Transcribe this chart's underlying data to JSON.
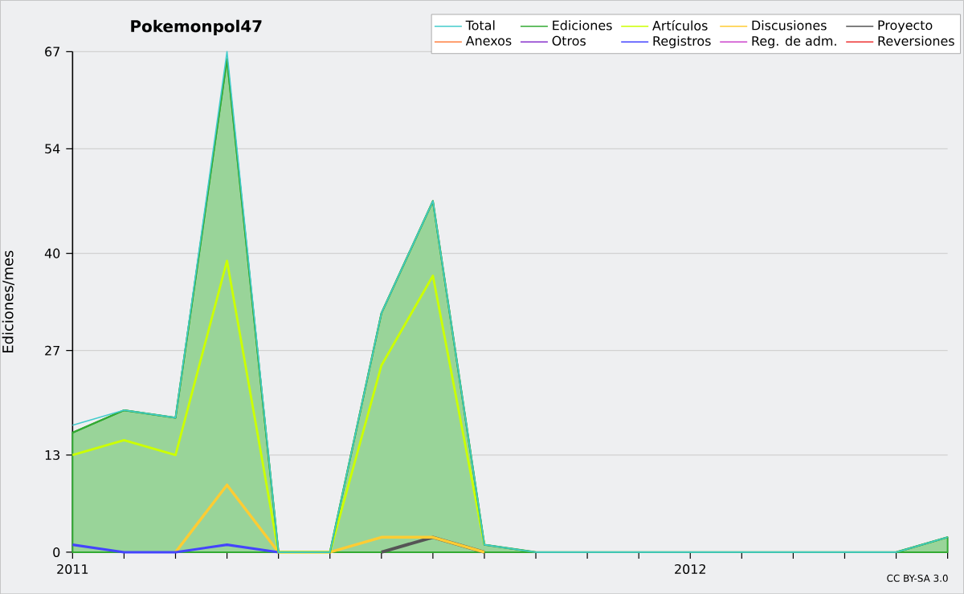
{
  "chart_data": {
    "type": "line",
    "title": "Pokemonpol47",
    "ylabel": "Ediciones/mes",
    "x": [
      "2011-01",
      "2011-02",
      "2011-03",
      "2011-04",
      "2011-05",
      "2011-06",
      "2011-07",
      "2011-08",
      "2011-09",
      "2011-10",
      "2011-11",
      "2011-12",
      "2012-01",
      "2012-02",
      "2012-03",
      "2012-04",
      "2012-05",
      "2012-06"
    ],
    "series": [
      {
        "name": "Total",
        "color": "#44cccc",
        "values": [
          17,
          19,
          18,
          67,
          0,
          0,
          32,
          47,
          1,
          0,
          0,
          0,
          0,
          0,
          0,
          0,
          0,
          2
        ]
      },
      {
        "name": "Anexos",
        "color": "#ff7f3f",
        "values": [
          null,
          null,
          null,
          null,
          null,
          null,
          null,
          null,
          null,
          null,
          null,
          null,
          null,
          null,
          null,
          null,
          null,
          null
        ]
      },
      {
        "name": "Ediciones",
        "color": "#33aa33",
        "type": "area",
        "values": [
          16,
          19,
          18,
          66,
          0,
          0,
          32,
          47,
          1,
          0,
          0,
          0,
          0,
          0,
          0,
          0,
          0,
          2
        ]
      },
      {
        "name": "Otros",
        "color": "#8833cc",
        "values": [
          null,
          null,
          null,
          null,
          null,
          null,
          null,
          null,
          null,
          null,
          null,
          null,
          null,
          null,
          null,
          null,
          null,
          null
        ]
      },
      {
        "name": "Artículos",
        "color": "#ccff00",
        "values": [
          13,
          15,
          13,
          39,
          0,
          0,
          25,
          37,
          1,
          null,
          null,
          null,
          null,
          null,
          null,
          null,
          null,
          null
        ]
      },
      {
        "name": "Registros",
        "color": "#4444ff",
        "values": [
          1,
          0,
          0,
          1,
          0,
          null,
          null,
          null,
          null,
          null,
          null,
          null,
          null,
          null,
          null,
          null,
          null,
          null
        ]
      },
      {
        "name": "Discusiones",
        "color": "#ffcc33",
        "values": [
          null,
          null,
          0,
          9,
          0,
          0,
          2,
          2,
          0,
          null,
          null,
          null,
          null,
          null,
          null,
          null,
          null,
          null
        ]
      },
      {
        "name": "Reg. de adm.",
        "color": "#cc44cc",
        "values": [
          null,
          null,
          null,
          null,
          null,
          null,
          null,
          null,
          null,
          null,
          null,
          null,
          null,
          null,
          null,
          null,
          null,
          null
        ]
      },
      {
        "name": "Proyecto",
        "color": "#555555",
        "values": [
          null,
          null,
          null,
          null,
          null,
          null,
          0,
          2,
          0,
          null,
          null,
          null,
          null,
          null,
          null,
          null,
          null,
          null
        ]
      },
      {
        "name": "Reversiones",
        "color": "#ee3333",
        "values": [
          null,
          null,
          null,
          null,
          null,
          null,
          null,
          null,
          null,
          null,
          null,
          null,
          null,
          null,
          null,
          null,
          null,
          null
        ]
      }
    ],
    "xlim": [
      "2011-01",
      "2012-06"
    ],
    "xticks": [
      {
        "value": "2011-01",
        "label": "2011"
      },
      {
        "value": "2011-02",
        "label": null
      },
      {
        "value": "2011-03",
        "label": null
      },
      {
        "value": "2011-04",
        "label": null
      },
      {
        "value": "2011-05",
        "label": null
      },
      {
        "value": "2011-06",
        "label": null
      },
      {
        "value": "2011-07",
        "label": null
      },
      {
        "value": "2011-08",
        "label": null
      },
      {
        "value": "2011-09",
        "label": null
      },
      {
        "value": "2011-10",
        "label": null
      },
      {
        "value": "2011-11",
        "label": null
      },
      {
        "value": "2011-12",
        "label": null
      },
      {
        "value": "2012-01",
        "label": "2012"
      },
      {
        "value": "2012-02",
        "label": null
      },
      {
        "value": "2012-03",
        "label": null
      },
      {
        "value": "2012-04",
        "label": null
      },
      {
        "value": "2012-05",
        "label": null
      },
      {
        "value": "2012-06",
        "label": null
      }
    ],
    "ylim": [
      0,
      67
    ],
    "yticks": [
      0,
      13,
      27,
      40,
      54,
      67
    ],
    "grid": "y",
    "legend": "top right",
    "annotations": [
      "CC BY-SA 3.0"
    ]
  }
}
